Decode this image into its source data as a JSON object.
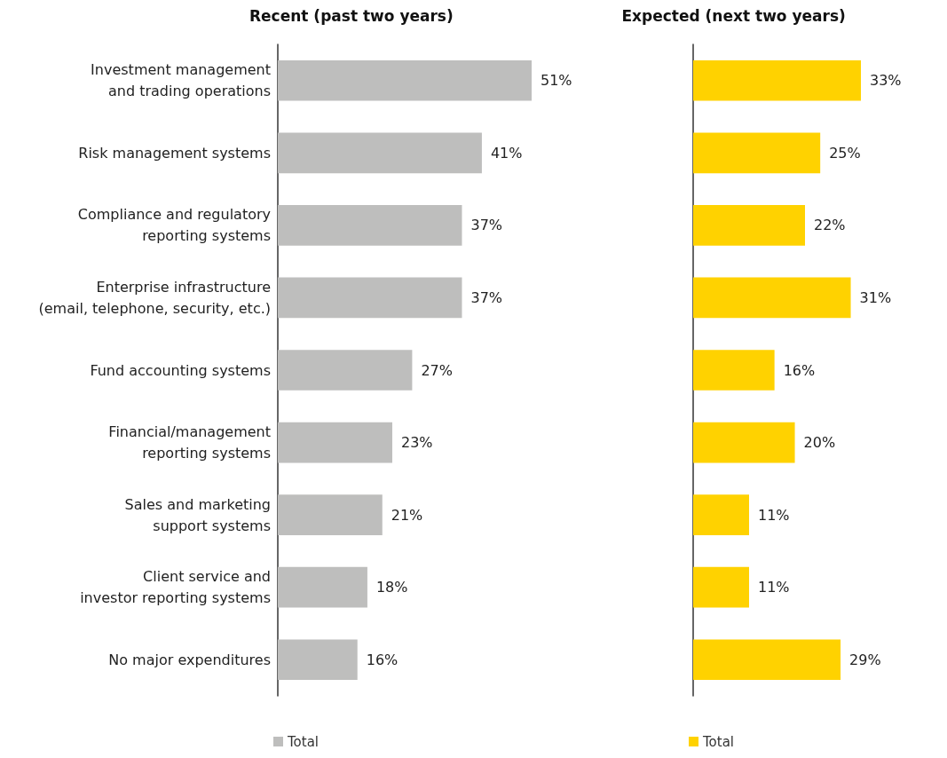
{
  "chart_data": [
    {
      "type": "bar",
      "orientation": "horizontal",
      "title": "Recent (past two years)",
      "categories": [
        "Investment management and trading operations",
        "Risk management systems",
        "Compliance and regulatory reporting systems",
        "Enterprise infrastructure (email, telephone, security, etc.)",
        "Fund accounting systems",
        "Financial/management reporting systems",
        "Sales and marketing support systems",
        "Client service and investor reporting systems",
        "No major expenditures"
      ],
      "series": [
        {
          "name": "Total",
          "color": "#bebebd",
          "values": [
            51,
            41,
            37,
            37,
            27,
            23,
            21,
            18,
            16
          ],
          "value_labels": [
            "51%",
            "41%",
            "37%",
            "37%",
            "27%",
            "23%",
            "21%",
            "18%",
            "16%"
          ]
        }
      ],
      "tick_labels": "y",
      "grid": false,
      "legend": "bottom"
    },
    {
      "type": "bar",
      "orientation": "horizontal",
      "title": "Expected (next two years)",
      "categories": [
        null,
        null,
        null,
        null,
        null,
        null,
        null,
        null,
        null
      ],
      "series": [
        {
          "name": "Total",
          "color": "#ffd200",
          "values": [
            33,
            25,
            22,
            31,
            16,
            20,
            11,
            11,
            29
          ],
          "value_labels": [
            "33%",
            "25%",
            "22%",
            "31%",
            "16%",
            "20%",
            "11%",
            "11%",
            "29%"
          ]
        }
      ],
      "tick_labels": false,
      "grid": false,
      "legend": "bottom"
    }
  ]
}
